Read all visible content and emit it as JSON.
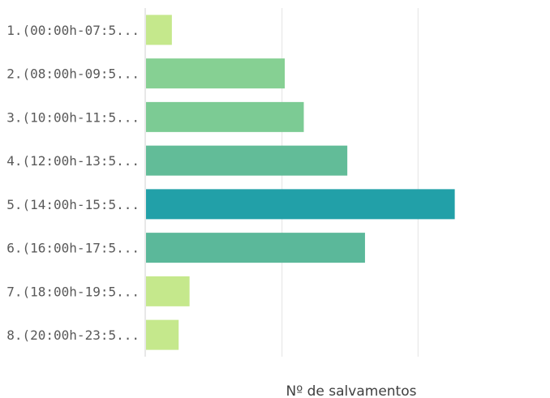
{
  "chart_data": {
    "type": "bar",
    "orientation": "horizontal",
    "categories": [
      "1.(00:00h-07:5...",
      "2.(08:00h-09:5...",
      "3.(10:00h-11:5...",
      "4.(12:00h-13:5...",
      "5.(14:00h-15:5...",
      "6.(16:00h-17:5...",
      "7.(18:00h-19:5...",
      "8.(20:00h-23:5..."
    ],
    "values": [
      19,
      102,
      116,
      148,
      227,
      161,
      32,
      24
    ],
    "colors": [
      "#c5e88c",
      "#86d093",
      "#7ccb94",
      "#62bc98",
      "#22a0a8",
      "#5bb89a",
      "#c5e88c",
      "#c5e88c"
    ],
    "title": "",
    "xlabel": "Nº de salvamentos",
    "ylabel": "",
    "xlim": [
      0,
      300
    ],
    "grid": "vertical"
  }
}
